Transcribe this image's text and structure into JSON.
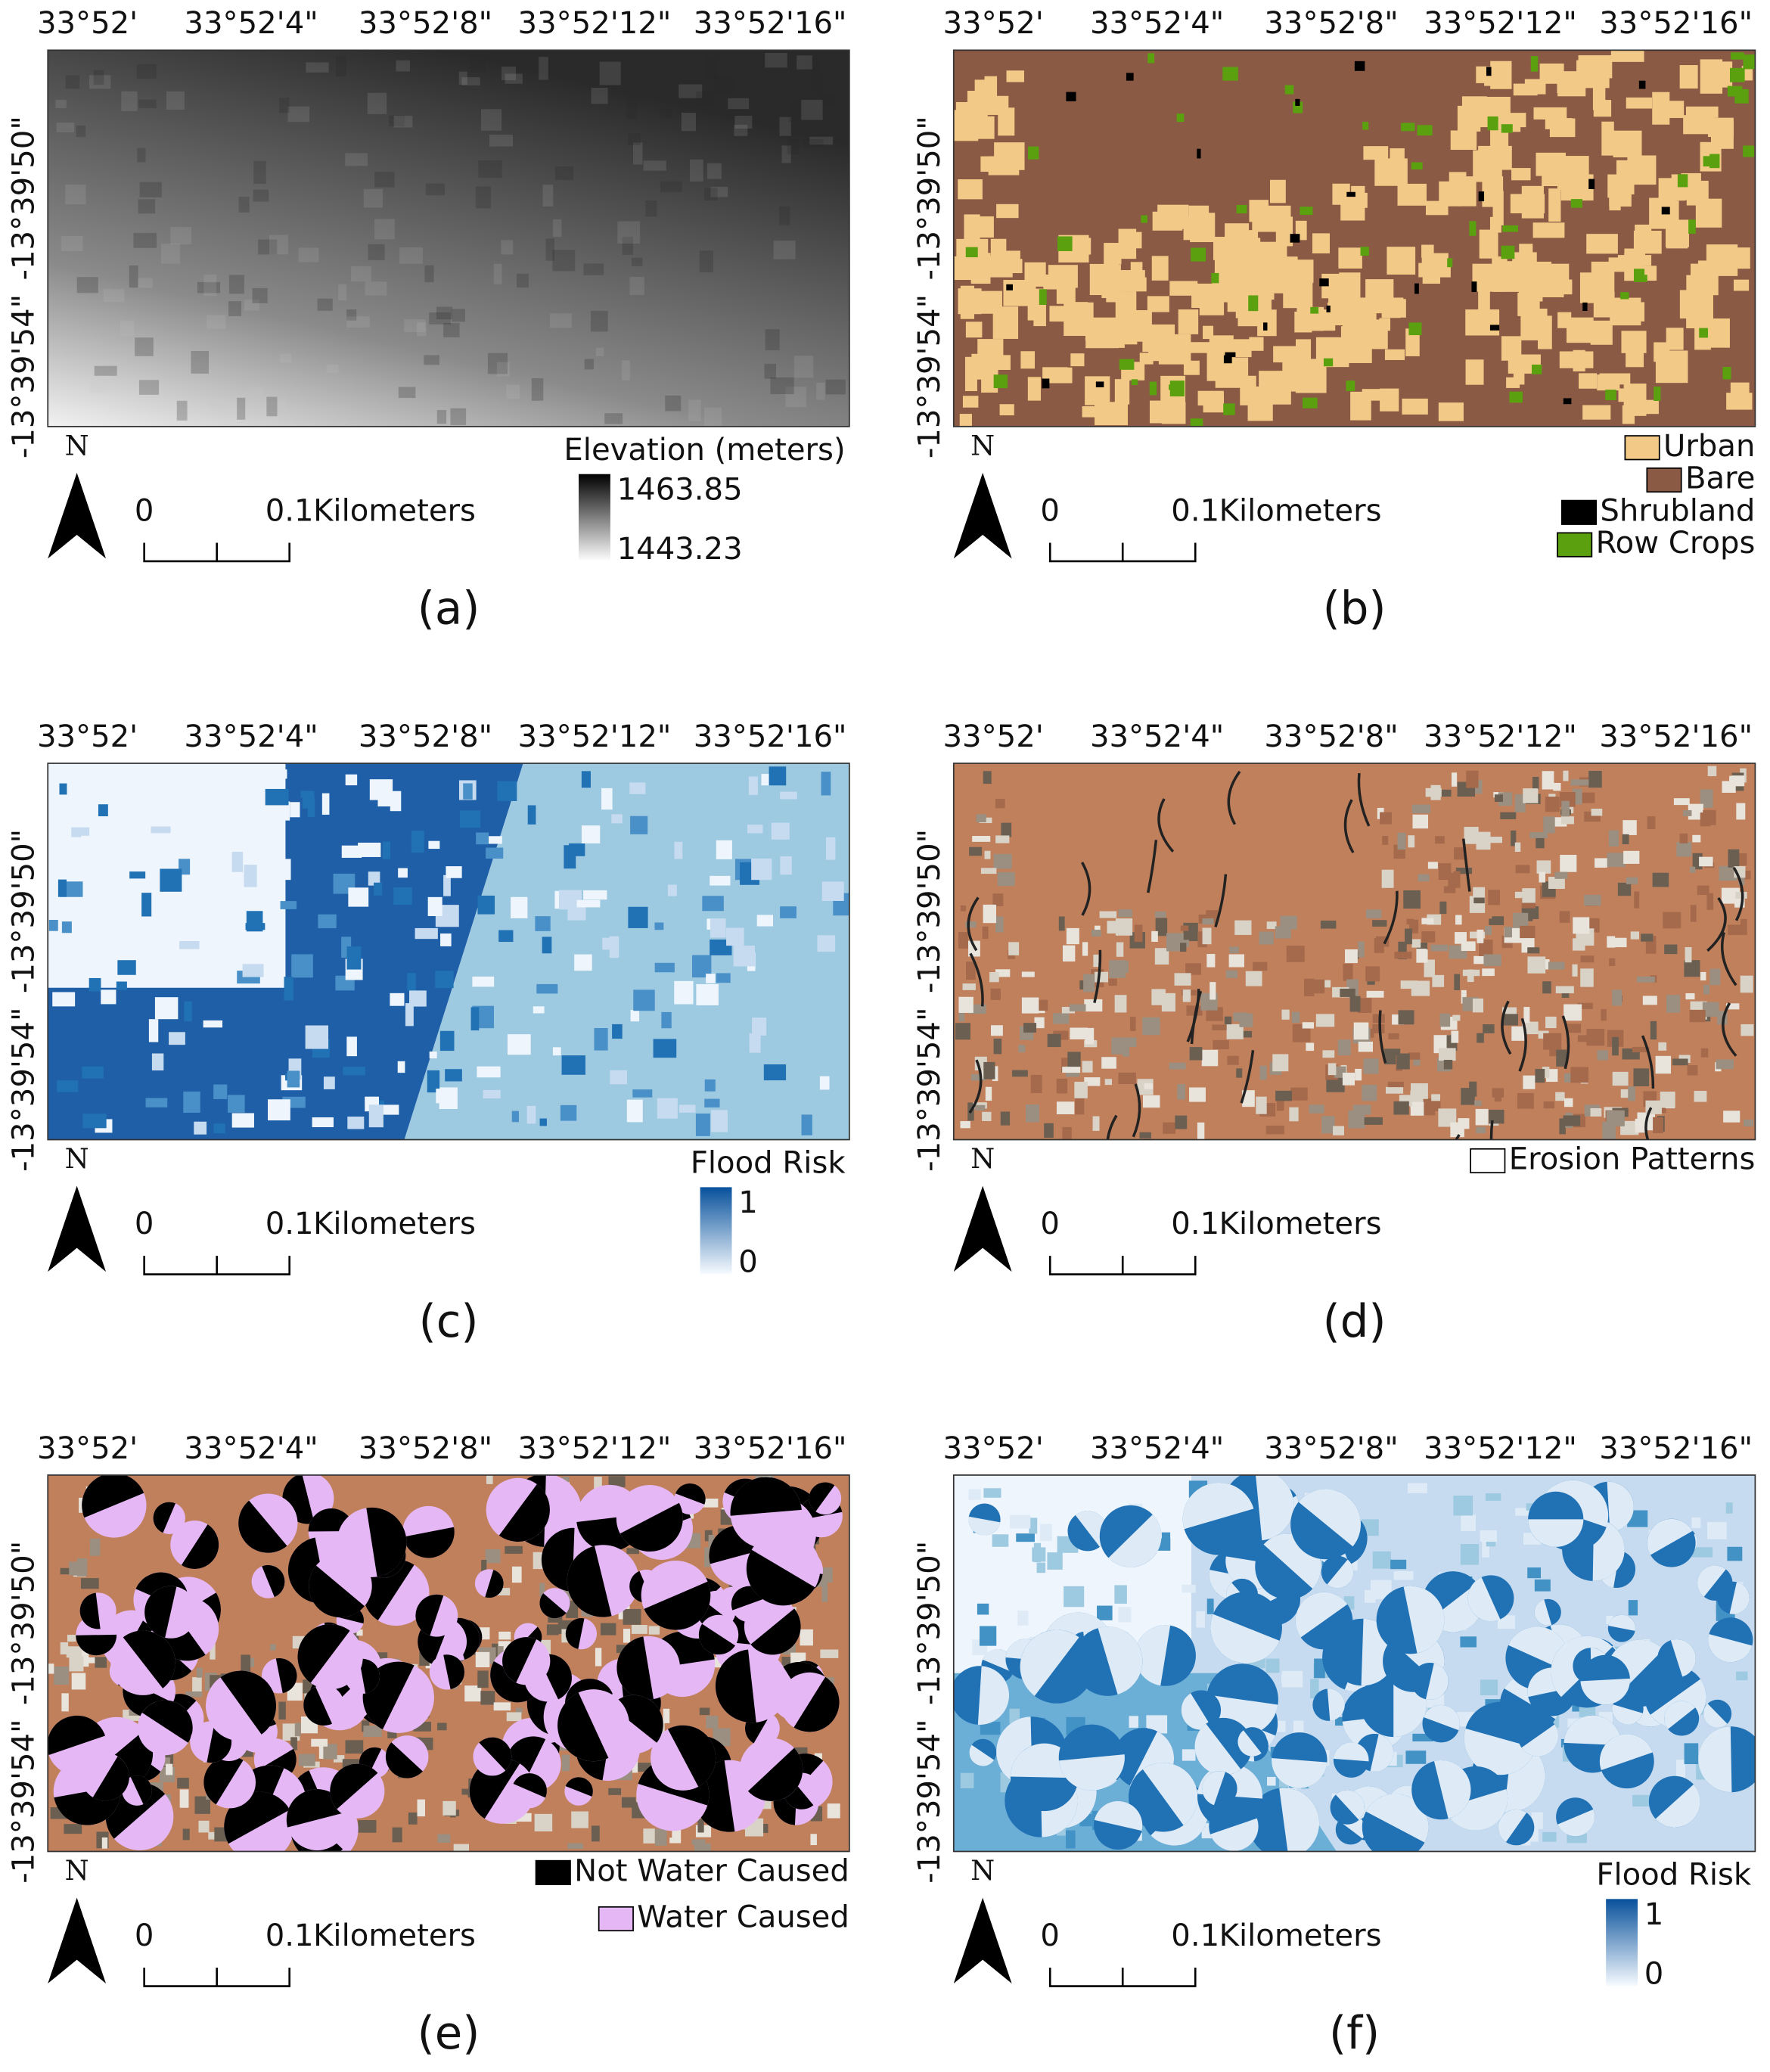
{
  "panels": [
    {
      "label": "(a)",
      "lon_ticks": [
        "33°52'",
        "33°52'4\"",
        "33°52'8\"",
        "33°52'12\"",
        "33°52'16\""
      ],
      "lat_ticks": [
        "-13°39'50\"",
        "-13°39'54\""
      ],
      "north": "N",
      "scale_bar": {
        "zero": "0",
        "distance": "0.1",
        "unit": "Kilometers"
      },
      "legend": {
        "kind": "gradient",
        "title": "Elevation (meters)",
        "max": "1463.85",
        "min": "1443.23",
        "colors": [
          "#000000",
          "#ffffff"
        ]
      }
    },
    {
      "label": "(b)",
      "lon_ticks": [
        "33°52'",
        "33°52'4\"",
        "33°52'8\"",
        "33°52'12\"",
        "33°52'16\""
      ],
      "lat_ticks": [
        "-13°39'50\"",
        "-13°39'54\""
      ],
      "north": "N",
      "scale_bar": {
        "zero": "0",
        "distance": "0.1",
        "unit": "Kilometers"
      },
      "legend": {
        "kind": "items",
        "items": [
          {
            "label": "Urban",
            "color": "#f3c987"
          },
          {
            "label": "Bare",
            "color": "#8b5a44"
          },
          {
            "label": "Shrubland",
            "color": "#000000"
          },
          {
            "label": "Row Crops",
            "color": "#5aa00f"
          }
        ]
      }
    },
    {
      "label": "(c)",
      "lon_ticks": [
        "33°52'",
        "33°52'4\"",
        "33°52'8\"",
        "33°52'12\"",
        "33°52'16\""
      ],
      "lat_ticks": [
        "-13°39'50\"",
        "-13°39'54\""
      ],
      "north": "N",
      "scale_bar": {
        "zero": "0",
        "distance": "0.1",
        "unit": "Kilometers"
      },
      "legend": {
        "kind": "gradient",
        "title": "Flood Risk",
        "max": "1",
        "min": "0",
        "colors": [
          "#08519c",
          "#f7fbff"
        ]
      }
    },
    {
      "label": "(d)",
      "lon_ticks": [
        "33°52'",
        "33°52'4\"",
        "33°52'8\"",
        "33°52'12\"",
        "33°52'16\""
      ],
      "lat_ticks": [
        "-13°39'50\"",
        "-13°39'54\""
      ],
      "north": "N",
      "scale_bar": {
        "zero": "0",
        "distance": "0.1",
        "unit": "Kilometers"
      },
      "legend": {
        "kind": "items",
        "items": [
          {
            "label": "Erosion Patterns",
            "color": "#ffffff"
          }
        ]
      }
    },
    {
      "label": "(e)",
      "lon_ticks": [
        "33°52'",
        "33°52'4\"",
        "33°52'8\"",
        "33°52'12\"",
        "33°52'16\""
      ],
      "lat_ticks": [
        "-13°39'50\"",
        "-13°39'54\""
      ],
      "north": "N",
      "scale_bar": {
        "zero": "0",
        "distance": "0.1",
        "unit": "Kilometers"
      },
      "legend": {
        "kind": "items",
        "items": [
          {
            "label": "Not Water Caused",
            "color": "#000000"
          },
          {
            "label": "Water Caused",
            "color": "#e5b7f5"
          }
        ]
      }
    },
    {
      "label": "(f)",
      "lon_ticks": [
        "33°52'",
        "33°52'4\"",
        "33°52'8\"",
        "33°52'12\"",
        "33°52'16\""
      ],
      "lat_ticks": [
        "-13°39'50\"",
        "-13°39'54\""
      ],
      "north": "N",
      "scale_bar": {
        "zero": "0",
        "distance": "0.1",
        "unit": "Kilometers"
      },
      "legend": {
        "kind": "gradient",
        "title": "Flood Risk",
        "max": "1",
        "min": "0",
        "colors": [
          "#08519c",
          "#f7fbff"
        ]
      }
    }
  ]
}
